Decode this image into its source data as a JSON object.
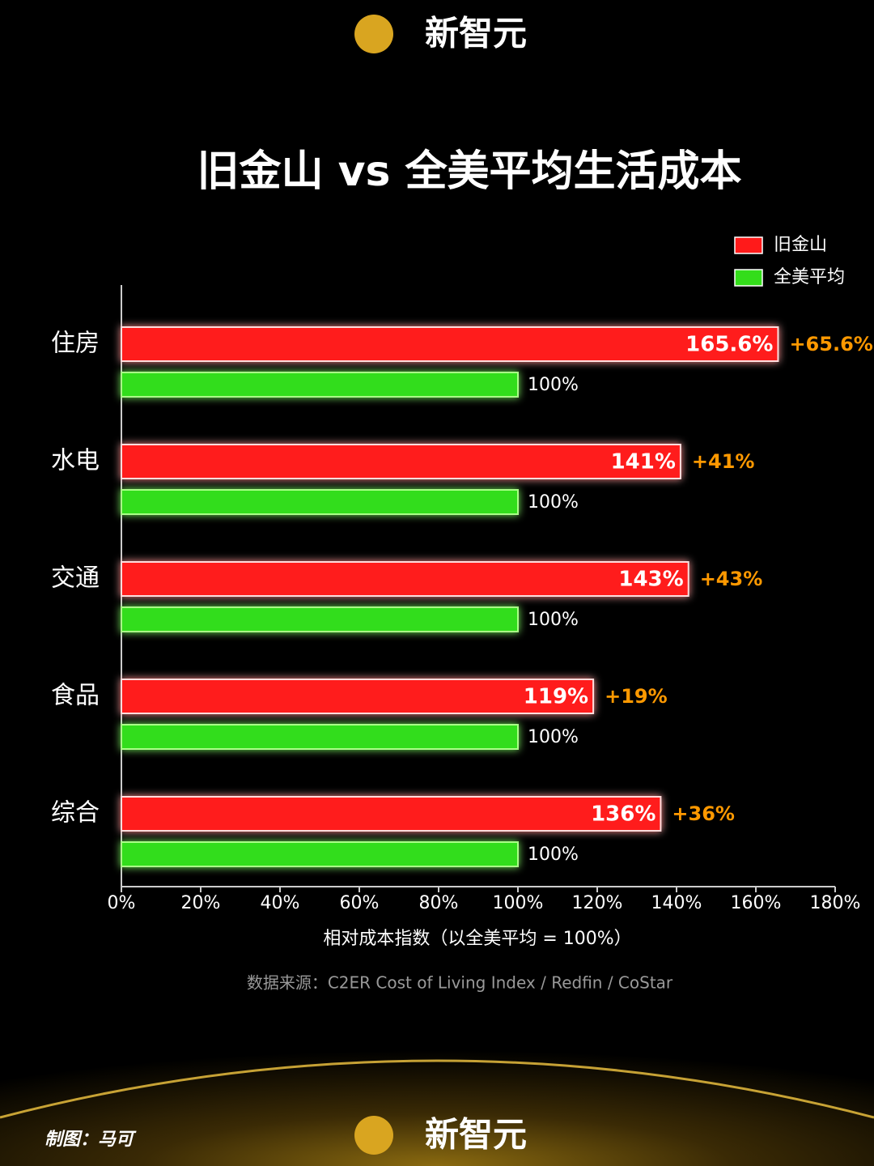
{
  "chart_data": {
    "type": "hbar",
    "brand": "新智元",
    "title": "旧金山 vs 全美平均生活成本",
    "categories": [
      "住房",
      "水电",
      "交通",
      "食品",
      "综合"
    ],
    "series": [
      {
        "name": "旧金山",
        "color": "#ff1a1a",
        "values": [
          165.6,
          141,
          143,
          119,
          136
        ],
        "value_labels": [
          "165.6%",
          "141%",
          "143%",
          "119%",
          "136%"
        ]
      },
      {
        "name": "全美平均",
        "color": "#33dd1a",
        "values": [
          100,
          100,
          100,
          100,
          100
        ],
        "value_labels": [
          "100%",
          "100%",
          "100%",
          "100%",
          "100%"
        ]
      }
    ],
    "annotations": [
      "+65.6%",
      "+41%",
      "+43%",
      "+19%",
      "+36%"
    ],
    "annotation_color": "#ff9900",
    "xlim": [
      0,
      180
    ],
    "xticks": [
      {
        "value": 0,
        "label": "0%"
      },
      {
        "value": 20,
        "label": "20%"
      },
      {
        "value": 40,
        "label": "40%"
      },
      {
        "value": 60,
        "label": "60%"
      },
      {
        "value": 80,
        "label": "80%"
      },
      {
        "value": 100,
        "label": "100%"
      },
      {
        "value": 120,
        "label": "120%"
      },
      {
        "value": 140,
        "label": "140%"
      },
      {
        "value": 160,
        "label": "160%"
      },
      {
        "value": 180,
        "label": "180%"
      }
    ],
    "xlabel": "相对成本指数（以全美平均 = 100%）",
    "source": "数据来源：C2ER Cost of Living Index / Redfin / CoStar",
    "credit": "制图：马可",
    "grid": false,
    "legend": "top-right"
  }
}
